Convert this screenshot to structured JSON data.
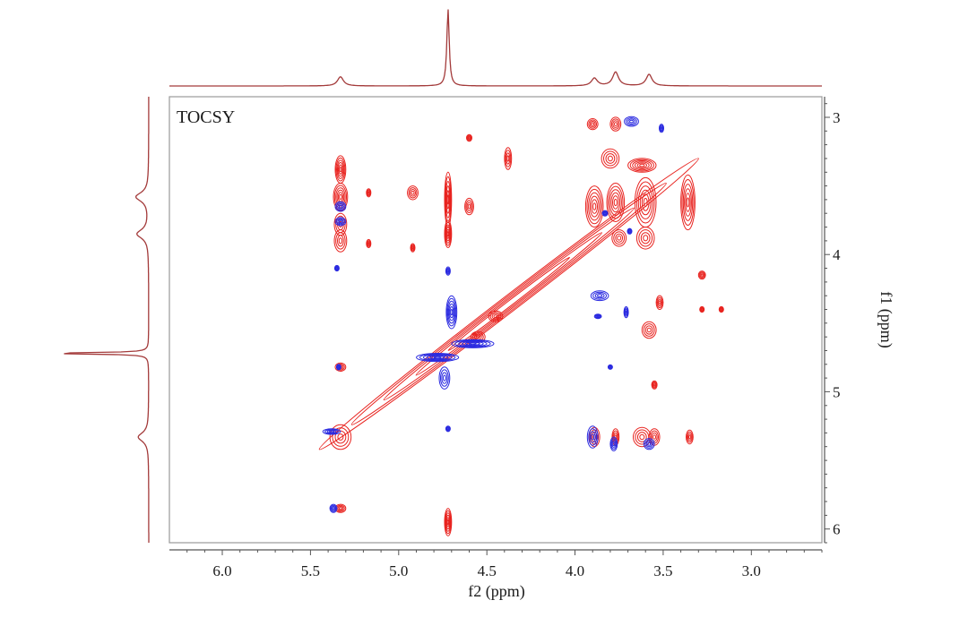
{
  "chart_data": {
    "type": "contour",
    "label": "TOCSY",
    "xlabel": "f2 (ppm)",
    "ylabel": "f1 (ppm)",
    "xlim": [
      6.3,
      2.6
    ],
    "ylim": [
      2.85,
      6.1
    ],
    "x_ticks": [
      6.0,
      5.5,
      5.0,
      4.5,
      4.0,
      3.5,
      3.0
    ],
    "x_tick_labels": [
      "6.0",
      "5.5",
      "5.0",
      "4.5",
      "4.0",
      "3.5",
      "3.0"
    ],
    "y_ticks": [
      3,
      4,
      5,
      6
    ],
    "y_tick_labels": [
      "3",
      "4",
      "5",
      "6"
    ],
    "colors": {
      "positive": "#e8231f",
      "negative": "#2a2ae0",
      "projection": "#a33a3a",
      "frame": "#555555"
    },
    "projection_f2_peaks": [
      {
        "ppm": 5.33,
        "height": 0.12
      },
      {
        "ppm": 4.72,
        "height": 1.0
      },
      {
        "ppm": 3.89,
        "height": 0.1
      },
      {
        "ppm": 3.77,
        "height": 0.18
      },
      {
        "ppm": 3.58,
        "height": 0.15
      }
    ],
    "projection_f1_peaks": [
      {
        "ppm": 3.58,
        "height": 0.12
      },
      {
        "ppm": 3.85,
        "height": 0.11
      },
      {
        "ppm": 4.72,
        "height": 1.0
      },
      {
        "ppm": 5.33,
        "height": 0.1
      }
    ],
    "diagonal": {
      "from": [
        5.45,
        5.42
      ],
      "to": [
        3.3,
        3.3
      ]
    },
    "positive_peaks": [
      {
        "x": 5.33,
        "y": 3.38,
        "w": 0.03,
        "h": 0.1
      },
      {
        "x": 5.33,
        "y": 3.58,
        "w": 0.04,
        "h": 0.1
      },
      {
        "x": 5.33,
        "y": 3.78,
        "w": 0.035,
        "h": 0.08
      },
      {
        "x": 5.33,
        "y": 3.9,
        "w": 0.035,
        "h": 0.08
      },
      {
        "x": 5.33,
        "y": 4.82,
        "w": 0.03,
        "h": 0.03
      },
      {
        "x": 5.33,
        "y": 5.33,
        "w": 0.06,
        "h": 0.09
      },
      {
        "x": 5.33,
        "y": 5.85,
        "w": 0.03,
        "h": 0.03
      },
      {
        "x": 5.17,
        "y": 3.55,
        "w": 0.01,
        "h": 0.03
      },
      {
        "x": 5.17,
        "y": 3.92,
        "w": 0.01,
        "h": 0.03
      },
      {
        "x": 4.92,
        "y": 3.55,
        "w": 0.03,
        "h": 0.05
      },
      {
        "x": 4.92,
        "y": 3.95,
        "w": 0.01,
        "h": 0.03
      },
      {
        "x": 4.72,
        "y": 3.6,
        "w": 0.02,
        "h": 0.2
      },
      {
        "x": 4.72,
        "y": 3.85,
        "w": 0.02,
        "h": 0.1
      },
      {
        "x": 4.72,
        "y": 5.95,
        "w": 0.02,
        "h": 0.1
      },
      {
        "x": 4.6,
        "y": 3.15,
        "w": 0.015,
        "h": 0.025
      },
      {
        "x": 4.6,
        "y": 3.65,
        "w": 0.025,
        "h": 0.06
      },
      {
        "x": 4.38,
        "y": 3.3,
        "w": 0.02,
        "h": 0.08
      },
      {
        "x": 3.89,
        "y": 3.65,
        "w": 0.05,
        "h": 0.15
      },
      {
        "x": 3.77,
        "y": 3.62,
        "w": 0.05,
        "h": 0.14
      },
      {
        "x": 3.6,
        "y": 3.62,
        "w": 0.06,
        "h": 0.18
      },
      {
        "x": 3.36,
        "y": 3.62,
        "w": 0.04,
        "h": 0.2
      },
      {
        "x": 3.8,
        "y": 3.3,
        "w": 0.05,
        "h": 0.07
      },
      {
        "x": 3.62,
        "y": 3.35,
        "w": 0.08,
        "h": 0.05
      },
      {
        "x": 3.77,
        "y": 3.05,
        "w": 0.03,
        "h": 0.05
      },
      {
        "x": 3.9,
        "y": 3.05,
        "w": 0.03,
        "h": 0.04
      },
      {
        "x": 3.75,
        "y": 3.88,
        "w": 0.04,
        "h": 0.06
      },
      {
        "x": 3.6,
        "y": 3.88,
        "w": 0.05,
        "h": 0.08
      },
      {
        "x": 3.28,
        "y": 4.15,
        "w": 0.02,
        "h": 0.03
      },
      {
        "x": 3.52,
        "y": 4.35,
        "w": 0.02,
        "h": 0.05
      },
      {
        "x": 3.58,
        "y": 4.55,
        "w": 0.04,
        "h": 0.06
      },
      {
        "x": 3.55,
        "y": 4.95,
        "w": 0.015,
        "h": 0.03
      },
      {
        "x": 3.89,
        "y": 5.33,
        "w": 0.03,
        "h": 0.07
      },
      {
        "x": 3.77,
        "y": 5.33,
        "w": 0.02,
        "h": 0.06
      },
      {
        "x": 3.62,
        "y": 5.33,
        "w": 0.05,
        "h": 0.07
      },
      {
        "x": 3.55,
        "y": 5.33,
        "w": 0.03,
        "h": 0.06
      },
      {
        "x": 3.35,
        "y": 5.33,
        "w": 0.02,
        "h": 0.05
      },
      {
        "x": 3.17,
        "y": 4.4,
        "w": 0.01,
        "h": 0.02
      },
      {
        "x": 3.28,
        "y": 4.4,
        "w": 0.01,
        "h": 0.02
      },
      {
        "x": 4.55,
        "y": 4.6,
        "w": 0.04,
        "h": 0.04
      },
      {
        "x": 4.45,
        "y": 4.45,
        "w": 0.04,
        "h": 0.04
      }
    ],
    "negative_peaks": [
      {
        "x": 5.33,
        "y": 3.65,
        "w": 0.03,
        "h": 0.035
      },
      {
        "x": 5.33,
        "y": 3.76,
        "w": 0.03,
        "h": 0.03
      },
      {
        "x": 5.35,
        "y": 4.1,
        "w": 0.008,
        "h": 0.02
      },
      {
        "x": 5.34,
        "y": 4.82,
        "w": 0.012,
        "h": 0.02
      },
      {
        "x": 5.38,
        "y": 5.29,
        "w": 0.05,
        "h": 0.02
      },
      {
        "x": 5.37,
        "y": 5.85,
        "w": 0.02,
        "h": 0.03
      },
      {
        "x": 4.72,
        "y": 4.12,
        "w": 0.01,
        "h": 0.03
      },
      {
        "x": 4.7,
        "y": 4.42,
        "w": 0.03,
        "h": 0.12
      },
      {
        "x": 4.78,
        "y": 4.75,
        "w": 0.12,
        "h": 0.03
      },
      {
        "x": 4.58,
        "y": 4.65,
        "w": 0.12,
        "h": 0.03
      },
      {
        "x": 4.74,
        "y": 4.9,
        "w": 0.03,
        "h": 0.08
      },
      {
        "x": 4.72,
        "y": 5.27,
        "w": 0.008,
        "h": 0.02
      },
      {
        "x": 3.68,
        "y": 3.03,
        "w": 0.04,
        "h": 0.035
      },
      {
        "x": 3.51,
        "y": 3.08,
        "w": 0.01,
        "h": 0.03
      },
      {
        "x": 3.83,
        "y": 3.7,
        "w": 0.015,
        "h": 0.02
      },
      {
        "x": 3.69,
        "y": 3.83,
        "w": 0.012,
        "h": 0.02
      },
      {
        "x": 3.86,
        "y": 4.3,
        "w": 0.05,
        "h": 0.035
      },
      {
        "x": 3.87,
        "y": 4.45,
        "w": 0.02,
        "h": 0.015
      },
      {
        "x": 3.71,
        "y": 4.42,
        "w": 0.01,
        "h": 0.04
      },
      {
        "x": 3.8,
        "y": 4.82,
        "w": 0.005,
        "h": 0.01
      },
      {
        "x": 3.9,
        "y": 5.33,
        "w": 0.03,
        "h": 0.08
      },
      {
        "x": 3.78,
        "y": 5.38,
        "w": 0.02,
        "h": 0.05
      },
      {
        "x": 3.58,
        "y": 5.38,
        "w": 0.03,
        "h": 0.04
      }
    ]
  }
}
